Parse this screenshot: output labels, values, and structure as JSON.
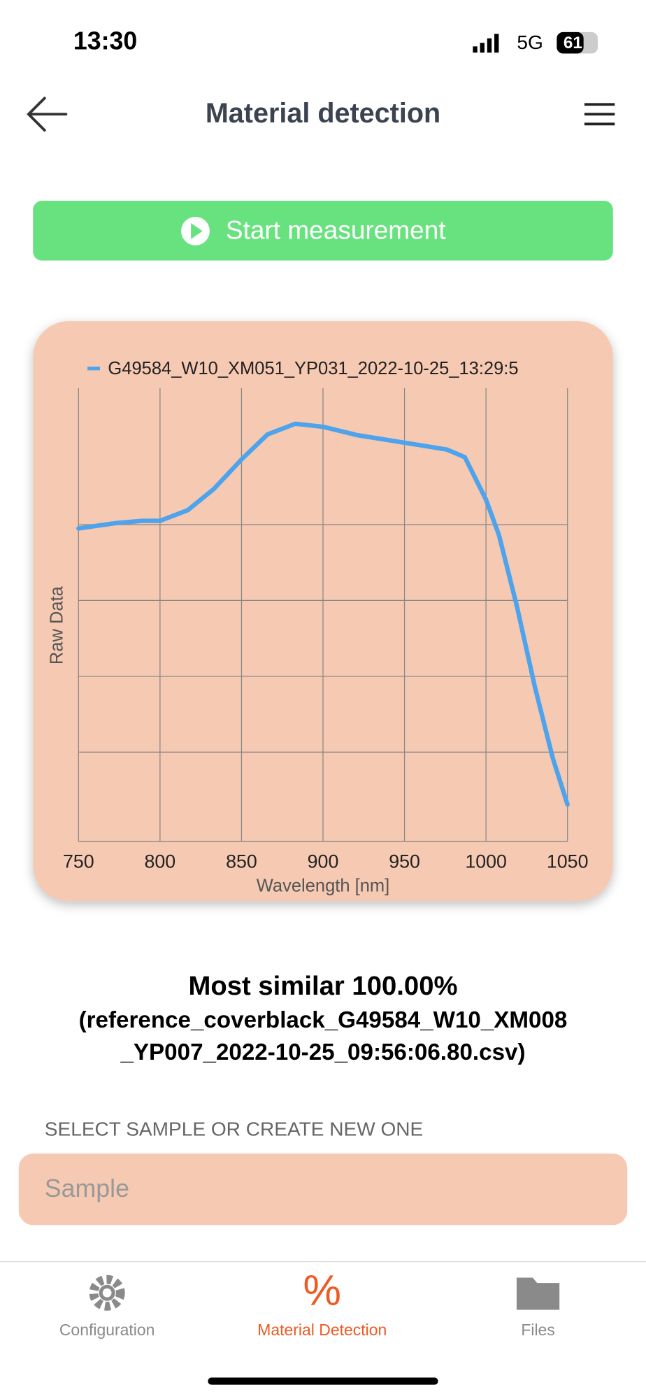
{
  "status_bar": {
    "time": "13:30",
    "network": "5G",
    "battery": "61"
  },
  "header": {
    "title": "Material detection"
  },
  "action": {
    "label": "Start measurement"
  },
  "chart_data": {
    "type": "line",
    "x_label": "Wavelength [nm]",
    "y_label": "Raw Data",
    "x": [
      750,
      773,
      789,
      800,
      817,
      833,
      850,
      866,
      883,
      900,
      921,
      950,
      976,
      987,
      1000,
      1008,
      1019,
      1030,
      1041,
      1050
    ],
    "series": [
      {
        "name": "G49584_W10_XM051_YP031_2022-10-25_13:29:5",
        "color": "#4da3ec",
        "values": [
          3.95,
          4.02,
          4.05,
          4.05,
          4.19,
          4.47,
          4.86,
          5.19,
          5.33,
          5.29,
          5.18,
          5.08,
          4.99,
          4.89,
          4.33,
          3.86,
          2.92,
          1.86,
          0.92,
          0.31
        ]
      }
    ],
    "xlim": [
      750,
      1050
    ],
    "xticks": [
      750,
      800,
      850,
      900,
      950,
      1000,
      1050
    ],
    "ylim": [
      0,
      6
    ],
    "ygrid": [
      1,
      2,
      3,
      4
    ],
    "grid": true
  },
  "result": {
    "title": "Most similar 100.00%",
    "line1": "(reference_coverblack_G49584_W10_XM008",
    "line2": "_YP007_2022-10-25_09:56:06.80.csv)"
  },
  "sample": {
    "section_label": "SELECT SAMPLE OR CREATE NEW ONE",
    "placeholder": "Sample"
  },
  "tabs": [
    {
      "label": "Configuration"
    },
    {
      "label": "Material Detection"
    },
    {
      "label": "Files"
    }
  ]
}
